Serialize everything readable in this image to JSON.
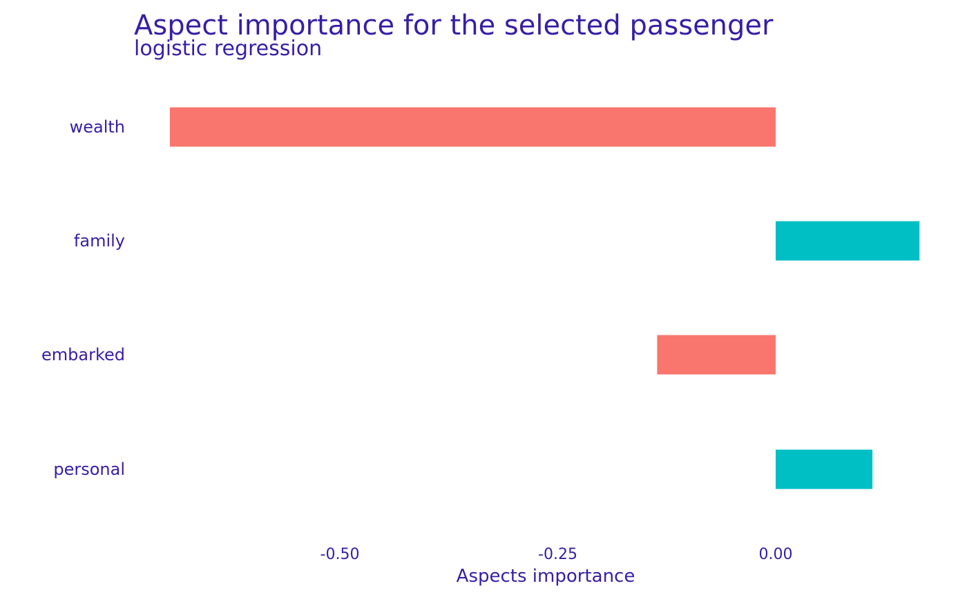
{
  "chart_data": {
    "type": "bar",
    "orientation": "horizontal",
    "title": "Aspect importance for the selected passenger",
    "subtitle": "logistic regression",
    "xlabel": "Aspects importance",
    "ylabel": "",
    "categories": [
      "wealth",
      "family",
      "embarked",
      "personal"
    ],
    "values": [
      -0.695,
      0.165,
      -0.136,
      0.111
    ],
    "xticks": [
      -0.5,
      -0.25,
      0.0
    ],
    "xtick_labels": [
      "-0.50",
      "-0.25",
      "0.00"
    ],
    "xlim": [
      -0.75,
      0.165
    ],
    "grid": false,
    "colors": {
      "negative": "#f8766d",
      "positive": "#00bfc4",
      "text": "#371ea3"
    }
  }
}
